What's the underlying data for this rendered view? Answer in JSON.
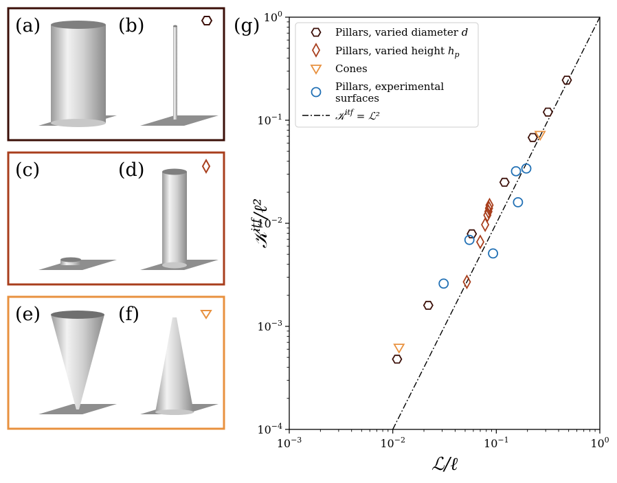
{
  "panels": [
    {
      "id": "pillars-d",
      "color": "#3b0f08",
      "marker": "hexagon",
      "left_label": "(a)",
      "right_label": "(b)"
    },
    {
      "id": "pillars-h",
      "color": "#a83e1c",
      "marker": "diamond",
      "left_label": "(c)",
      "right_label": "(d)"
    },
    {
      "id": "cones",
      "color": "#e8913f",
      "marker": "triangle",
      "left_label": "(e)",
      "right_label": "(f)"
    }
  ],
  "chart_data": {
    "type": "scatter",
    "panel_label": "(g)",
    "x_scale": "log",
    "y_scale": "log",
    "xlim": [
      0.001,
      1
    ],
    "ylim": [
      0.0001,
      1
    ],
    "xlabel": "ℒ/ℓ",
    "ylabel": "𝒦",
    "ylabel_sup": "itf",
    "ylabel_den": "/ℓ²",
    "x_ticks": [
      {
        "value": 0.001,
        "label": "10",
        "exp": "−3"
      },
      {
        "value": 0.01,
        "label": "10",
        "exp": "−2"
      },
      {
        "value": 0.1,
        "label": "10",
        "exp": "−1"
      },
      {
        "value": 1,
        "label": "10",
        "exp": "0"
      }
    ],
    "y_ticks": [
      {
        "value": 0.0001,
        "label": "10",
        "exp": "−4"
      },
      {
        "value": 0.001,
        "label": "10",
        "exp": "−3"
      },
      {
        "value": 0.01,
        "label": "10",
        "exp": "−2"
      },
      {
        "value": 0.1,
        "label": "10",
        "exp": "−1"
      },
      {
        "value": 1,
        "label": "10",
        "exp": "0"
      }
    ],
    "series": [
      {
        "name": "Pillars, varied diameter d",
        "legend_text": "Pillars, varied diameter ",
        "legend_math": "d",
        "marker": "hexagon",
        "color": "#3b0f08",
        "x": [
          0.011,
          0.022,
          0.058,
          0.12,
          0.225,
          0.315,
          0.48
        ],
        "y": [
          0.00048,
          0.0016,
          0.0079,
          0.025,
          0.068,
          0.12,
          0.245
        ]
      },
      {
        "name": "Pillars, varied height h_p",
        "legend_text": "Pillars, varied height ",
        "legend_math": "h",
        "legend_sub": "p",
        "marker": "diamond",
        "color": "#a83e1c",
        "x": [
          0.052,
          0.07,
          0.078,
          0.082,
          0.084,
          0.085,
          0.086
        ],
        "y": [
          0.0027,
          0.0066,
          0.0097,
          0.012,
          0.013,
          0.014,
          0.015
        ]
      },
      {
        "name": "Cones",
        "legend_text": "Cones",
        "marker": "triangle",
        "color": "#e8913f",
        "x": [
          0.0115,
          0.265
        ],
        "y": [
          0.00062,
          0.072
        ]
      },
      {
        "name": "Pillars, experimental surfaces",
        "legend_text": "Pillars, experimental",
        "legend_text2": "surfaces",
        "marker": "circle",
        "color": "#1f6fb4",
        "x": [
          0.031,
          0.055,
          0.093,
          0.155,
          0.162,
          0.195
        ],
        "y": [
          0.0026,
          0.0069,
          0.0051,
          0.032,
          0.016,
          0.034
        ]
      }
    ],
    "reference_line": {
      "name": "K^itf = L^2",
      "legend_lhs": "𝒦",
      "legend_sup": "itf",
      "legend_rhs": " = ℒ²",
      "style": "dash-dot",
      "color": "#000000",
      "exponent": 2
    }
  }
}
